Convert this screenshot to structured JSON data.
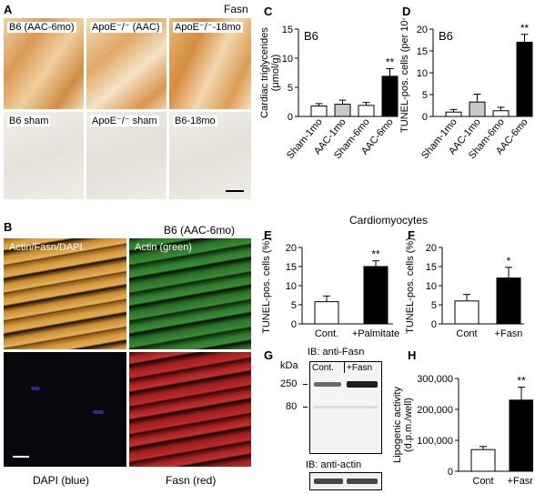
{
  "panel_letters": {
    "A": "A",
    "B": "B",
    "C": "C",
    "D": "D",
    "E": "E",
    "F": "F",
    "G": "G",
    "H": "H"
  },
  "panel_a": {
    "stain_label": "Fasn",
    "row1": [
      "B6 (AAC-6mo)",
      "ApoE⁻/⁻ (AAC)",
      "ApoE⁻/⁻-18mo"
    ],
    "row2": [
      "B6 sham",
      "ApoE⁻/⁻ sham",
      "B6-18mo"
    ],
    "colors": {
      "stained": "#e3b27a",
      "unstained": "#ece9e3"
    }
  },
  "panel_b": {
    "header": "B6 (AAC-6mo)",
    "tiles": [
      "Actin/Fasn/DAPI",
      "Actin (green)",
      "DAPI (blue)",
      "Fasn (red)"
    ],
    "colors": {
      "merge": "#c8882a",
      "green": "#2d7a2a",
      "blue": "#0a0a14",
      "red": "#a82222"
    }
  },
  "section_title": "Cardiomyocytes",
  "chart_data": [
    {
      "id": "C",
      "type": "bar",
      "label": "B6",
      "ylabel": "Cardiac triglycerides\n(μmol/g)",
      "ylim": [
        0,
        15
      ],
      "yticks": [
        0,
        5,
        10,
        15
      ],
      "categories": [
        "Sham-1mo",
        "AAC-1mo",
        "Sham-6mo",
        "AAC-6mo"
      ],
      "values": [
        1.8,
        2.1,
        1.9,
        6.9
      ],
      "errors": [
        0.4,
        0.7,
        0.5,
        1.3
      ],
      "fills": [
        "#ffffff",
        "#c8c8c8",
        "#ffffff",
        "#000000"
      ],
      "annotations": [
        "",
        "",
        "",
        "**"
      ]
    },
    {
      "id": "D",
      "type": "bar",
      "label": "B6",
      "ylabel": "TUNEL-pos. cells (per 10⁴)",
      "ylim": [
        0,
        20
      ],
      "yticks": [
        0,
        5,
        10,
        15,
        20
      ],
      "categories": [
        "Sham-1mo",
        "AAC-1mo",
        "Sham-6mo",
        "AAC-6mo"
      ],
      "values": [
        1.0,
        3.3,
        1.3,
        17.0
      ],
      "errors": [
        0.6,
        1.8,
        0.8,
        1.8
      ],
      "fills": [
        "#ffffff",
        "#c8c8c8",
        "#ffffff",
        "#000000"
      ],
      "annotations": [
        "",
        "",
        "",
        "**"
      ]
    },
    {
      "id": "E",
      "type": "bar",
      "ylabel": "TUNEL-pos. cells (%)",
      "ylim": [
        0,
        20
      ],
      "yticks": [
        0,
        5,
        10,
        15,
        20
      ],
      "categories": [
        "Cont.",
        "+Palmitate"
      ],
      "values": [
        5.8,
        15.0
      ],
      "errors": [
        1.5,
        1.5
      ],
      "fills": [
        "#ffffff",
        "#000000"
      ],
      "annotations": [
        "",
        "**"
      ]
    },
    {
      "id": "F",
      "type": "bar",
      "ylabel": "TUNEL-pos. cells (%)",
      "ylim": [
        0,
        20
      ],
      "yticks": [
        0,
        5,
        10,
        15,
        20
      ],
      "categories": [
        "Cont",
        "+Fasn"
      ],
      "values": [
        6.0,
        12.0
      ],
      "errors": [
        1.7,
        2.8
      ],
      "fills": [
        "#ffffff",
        "#000000"
      ],
      "annotations": [
        "",
        "*"
      ]
    },
    {
      "id": "H",
      "type": "bar",
      "ylabel": "Lipogenic activity\n(d.p.m./well)",
      "ylim": [
        0,
        300000
      ],
      "yticks": [
        0,
        100000,
        200000,
        300000
      ],
      "ytick_labels": [
        "0",
        "100,000",
        "200,000",
        "300,000"
      ],
      "categories": [
        "Cont",
        "+Fasn"
      ],
      "values": [
        70000,
        230000
      ],
      "errors": [
        10000,
        42000
      ],
      "fills": [
        "#ffffff",
        "#000000"
      ],
      "annotations": [
        "",
        "**"
      ]
    }
  ],
  "panel_g": {
    "title1": "IB: anti-Fasn",
    "title2": "IB: anti-actin",
    "kda": "kDa",
    "markers": [
      "250",
      "80"
    ],
    "lanes": [
      "Cont.",
      "+Fasn"
    ]
  }
}
